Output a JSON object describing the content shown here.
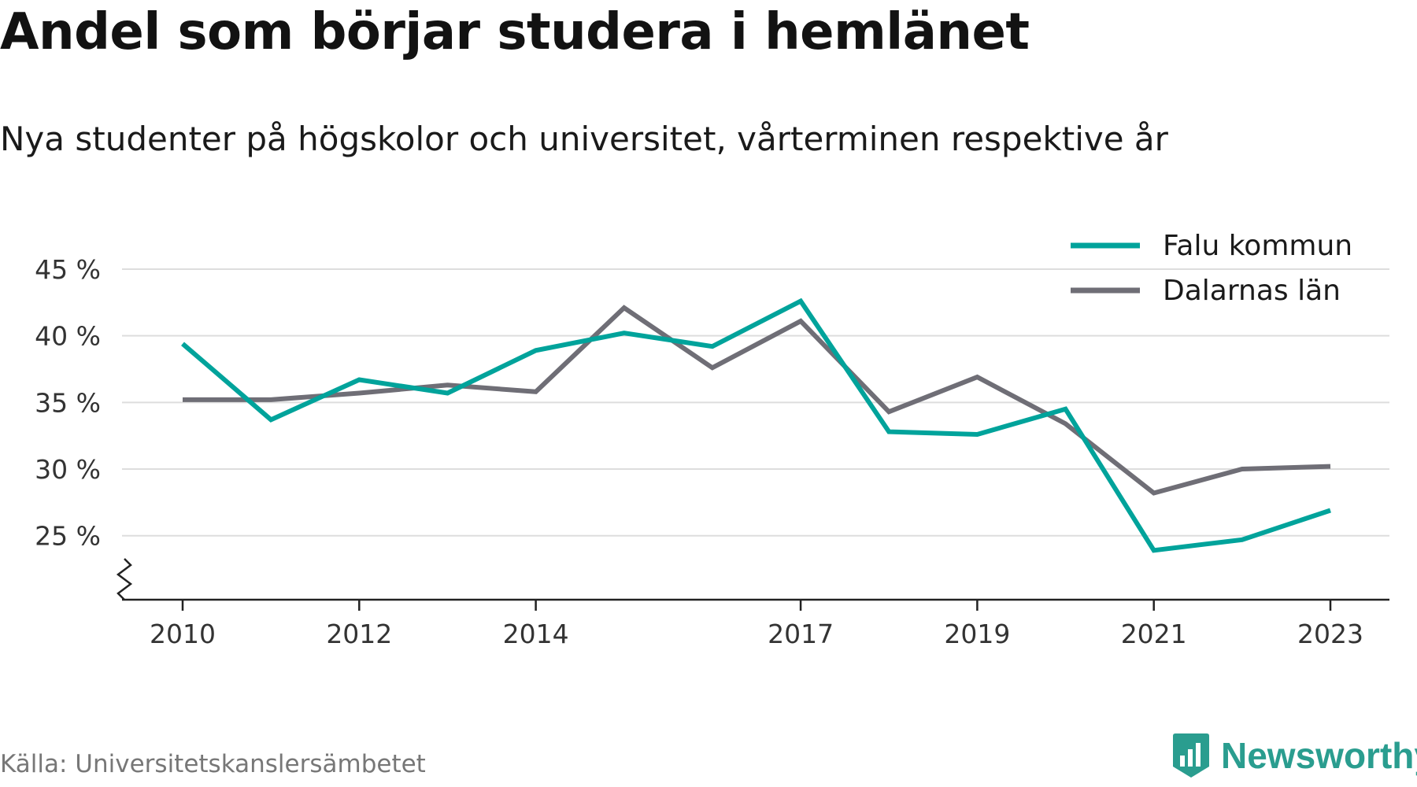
{
  "title": "Andel som börjar studera i hemlänet",
  "subtitle": "Nya studenter på högskolor och universitet, vårterminen respektive år",
  "source": "Källa: Universitetskanslersämbetet",
  "logo_text": "Newsworthy",
  "chart_data": {
    "type": "line",
    "x": [
      2010,
      2011,
      2012,
      2013,
      2014,
      2015,
      2016,
      2017,
      2018,
      2019,
      2020,
      2021,
      2022,
      2023
    ],
    "x_tick_labels": [
      "2010",
      "2012",
      "2014",
      "2017",
      "2019",
      "2021",
      "2023"
    ],
    "y_ticks": [
      25,
      30,
      35,
      40,
      45
    ],
    "y_tick_labels": [
      "25 %",
      "30 %",
      "35 %",
      "40 %",
      "45 %"
    ],
    "ylim": [
      20.2,
      46
    ],
    "y_axis_break": true,
    "grid": true,
    "legend_position": "top-right",
    "series": [
      {
        "name": "Falu kommun",
        "color": "#00a39b",
        "values": [
          39.4,
          33.7,
          36.7,
          35.7,
          38.9,
          40.2,
          39.2,
          42.6,
          32.8,
          32.6,
          34.5,
          23.9,
          24.7,
          26.9
        ]
      },
      {
        "name": "Dalarnas län",
        "color": "#6f6e76",
        "values": [
          35.2,
          35.2,
          35.7,
          36.3,
          35.8,
          42.1,
          37.6,
          41.1,
          34.3,
          36.9,
          33.4,
          28.2,
          30.0,
          30.2
        ]
      }
    ]
  }
}
